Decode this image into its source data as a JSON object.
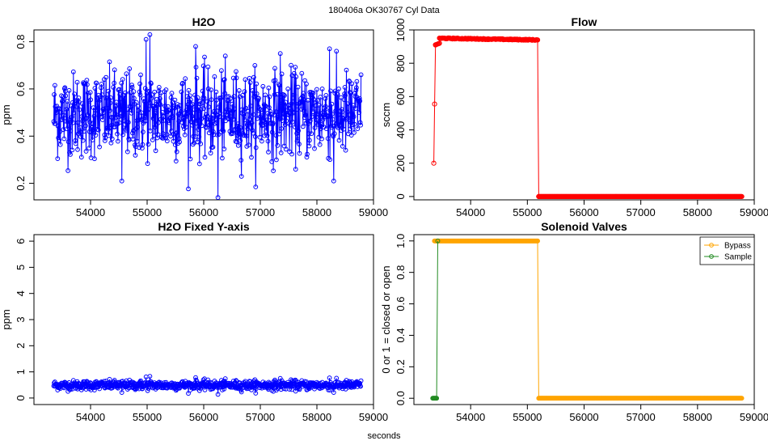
{
  "suptitle": "180406a    OK30767   Cyl Data",
  "xlabel_global": "seconds",
  "chart_data": [
    {
      "id": "h2o",
      "type": "scatter",
      "title": "H2O",
      "xlabel": "",
      "ylabel": "ppm",
      "xlim": [
        53000,
        59000
      ],
      "ylim": [
        0.13,
        0.85
      ],
      "xticks": [
        54000,
        55000,
        56000,
        57000,
        58000,
        59000
      ],
      "yticks": [
        0.2,
        0.4,
        0.6,
        0.8
      ],
      "ytick_labels": [
        "0.2",
        "0.4",
        "0.6",
        "0.8"
      ],
      "grid": false,
      "series": [
        {
          "color": "#0000ff",
          "marker": "open-circle",
          "line": true,
          "x_range": [
            53350,
            58780
          ],
          "mean": 0.49,
          "spread": 0.09,
          "min": 0.14,
          "max": 0.83,
          "n_points": 800,
          "notable_points": [
            [
              55050,
              0.83
            ],
            [
              54980,
              0.81
            ],
            [
              56250,
              0.14
            ],
            [
              54550,
              0.21
            ],
            [
              58300,
              0.21
            ],
            [
              55860,
              0.78
            ],
            [
              58220,
              0.77
            ],
            [
              57350,
              0.75
            ]
          ]
        }
      ]
    },
    {
      "id": "flow",
      "type": "scatter",
      "title": "Flow",
      "xlabel": "",
      "ylabel": "sccm",
      "xlim": [
        53000,
        59000
      ],
      "ylim": [
        -20,
        1000
      ],
      "xticks": [
        54000,
        55000,
        56000,
        57000,
        58000,
        59000
      ],
      "yticks": [
        0,
        200,
        400,
        600,
        800,
        1000
      ],
      "ytick_labels": [
        "0",
        "200",
        "400",
        "600",
        "800",
        "1000"
      ],
      "grid": false,
      "series": [
        {
          "color": "#ff0000",
          "marker": "open-circle",
          "line": true,
          "segments": [
            {
              "x": [
                53350,
                53380
              ],
              "y": [
                200,
                910
              ]
            },
            {
              "x": [
                53380,
                53450
              ],
              "y": [
                910,
                920
              ]
            },
            {
              "x": [
                53450,
                55180
              ],
              "y": [
                950,
                940
              ],
              "noise": 6
            },
            {
              "x": [
                55180,
                55200
              ],
              "y": [
                940,
                0
              ]
            },
            {
              "x": [
                55200,
                58780
              ],
              "y": [
                0,
                0
              ]
            }
          ]
        }
      ]
    },
    {
      "id": "h2o-fixed",
      "type": "scatter",
      "title": "H2O Fixed Y-axis",
      "xlabel": "seconds",
      "ylabel": "ppm",
      "xlim": [
        53000,
        59000
      ],
      "ylim": [
        -0.25,
        6.25
      ],
      "xticks": [
        54000,
        55000,
        56000,
        57000,
        58000,
        59000
      ],
      "yticks": [
        0,
        1,
        2,
        3,
        4,
        5,
        6
      ],
      "ytick_labels": [
        "0",
        "1",
        "2",
        "3",
        "4",
        "5",
        "6"
      ],
      "grid": false,
      "series": [
        {
          "color": "#0000ff",
          "marker": "open-circle",
          "line": true,
          "x_range": [
            53350,
            58780
          ],
          "mean": 0.49,
          "spread": 0.09,
          "n_points": 800
        }
      ]
    },
    {
      "id": "valves",
      "type": "scatter",
      "title": "Solenoid Valves",
      "xlabel": "",
      "ylabel": "0 or 1 = closed or open",
      "xlim": [
        53000,
        59000
      ],
      "ylim": [
        -0.04,
        1.04
      ],
      "xticks": [
        54000,
        55000,
        56000,
        57000,
        58000,
        59000
      ],
      "yticks": [
        0.0,
        0.2,
        0.4,
        0.6,
        0.8,
        1.0
      ],
      "ytick_labels": [
        "0.0",
        "0.2",
        "0.4",
        "0.6",
        "0.8",
        "1.0"
      ],
      "grid": false,
      "legend": {
        "placement": "top-right",
        "entries": [
          "Bypass",
          "Sample"
        ]
      },
      "series": [
        {
          "name": "Bypass",
          "color": "#ffa500",
          "marker": "open-circle",
          "line": true,
          "x": [
            53360,
            55180,
            55200,
            58780
          ],
          "y": [
            1,
            1,
            0,
            0
          ]
        },
        {
          "name": "Sample",
          "color": "#228b22",
          "marker": "open-circle",
          "line": true,
          "x": [
            53330,
            53400,
            53420
          ],
          "y": [
            0,
            0,
            1
          ]
        }
      ]
    }
  ]
}
